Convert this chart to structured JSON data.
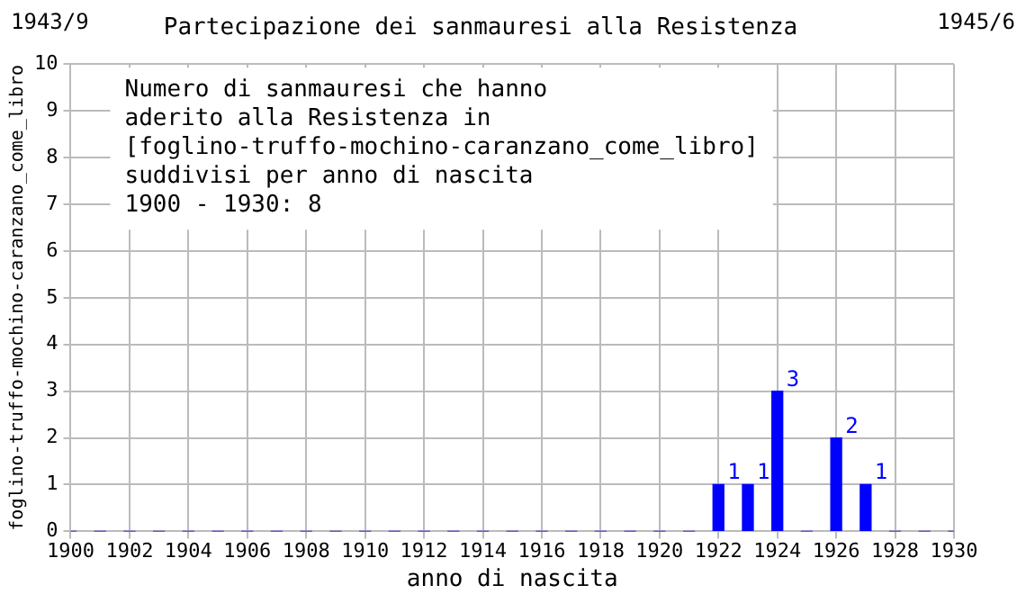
{
  "chart_data": {
    "type": "bar",
    "title": "Partecipazione dei sanmauresi alla Resistenza",
    "xlabel": "anno di nascita",
    "ylabel": "foglino-truffo-mochino-caranzano_come_libro",
    "annotations": [
      "1943/9",
      "1945/6",
      "Numero di sanmauresi che hanno",
      "aderito alla Resistenza in",
      "[foglino-truffo-mochino-caranzano_come_libro]",
      "suddivisi per anno di nascita",
      "1900 - 1930: 8"
    ],
    "x": [
      1900,
      1901,
      1902,
      1903,
      1904,
      1905,
      1906,
      1907,
      1908,
      1909,
      1910,
      1911,
      1912,
      1913,
      1914,
      1915,
      1916,
      1917,
      1918,
      1919,
      1920,
      1921,
      1922,
      1923,
      1924,
      1925,
      1926,
      1927,
      1928,
      1929,
      1930
    ],
    "values": [
      0,
      0,
      0,
      0,
      0,
      0,
      0,
      0,
      0,
      0,
      0,
      0,
      0,
      0,
      0,
      0,
      0,
      0,
      0,
      0,
      0,
      0,
      1,
      1,
      3,
      0,
      2,
      1,
      0,
      0,
      0
    ],
    "value_labels": [
      null,
      null,
      null,
      null,
      null,
      null,
      null,
      null,
      null,
      null,
      null,
      null,
      null,
      null,
      null,
      null,
      null,
      null,
      null,
      null,
      null,
      null,
      "1",
      "1",
      "3",
      null,
      "2",
      "1",
      null,
      null,
      null
    ],
    "color": "#0000ff",
    "xlim": [
      1900,
      1930
    ],
    "xticks": [
      1900,
      1902,
      1904,
      1906,
      1908,
      1910,
      1912,
      1914,
      1916,
      1918,
      1920,
      1922,
      1924,
      1926,
      1928,
      1930
    ],
    "ylim": [
      0,
      10
    ],
    "yticks": [
      0,
      1,
      2,
      3,
      4,
      5,
      6,
      7,
      8,
      9,
      10
    ],
    "grid": true,
    "legend": false
  }
}
